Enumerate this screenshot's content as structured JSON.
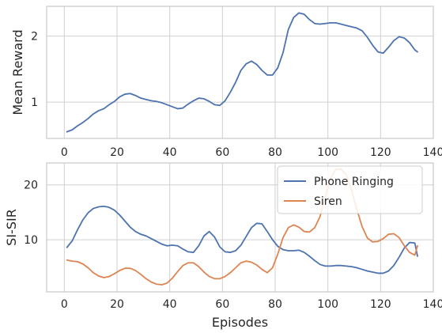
{
  "chart_data": [
    {
      "type": "line",
      "ylabel": "Mean Reward",
      "xlabel": "",
      "xlim": [
        -6.7,
        140
      ],
      "ylim": [
        0.45,
        2.45
      ],
      "xticks": [
        0,
        20,
        40,
        60,
        80,
        100,
        120,
        140
      ],
      "yticks": [
        1,
        2
      ],
      "grid": true,
      "legend": false,
      "series": [
        {
          "color": "#4c72b0",
          "x": [
            1,
            3,
            5,
            7,
            9,
            11,
            13,
            15,
            17,
            19,
            21,
            23,
            25,
            27,
            29,
            31,
            33,
            35,
            37,
            39,
            41,
            43,
            45,
            47,
            49,
            51,
            53,
            55,
            57,
            59,
            61,
            63,
            65,
            67,
            69,
            71,
            73,
            75,
            77,
            79,
            81,
            83,
            85,
            87,
            89,
            91,
            93,
            95,
            97,
            99,
            101,
            103,
            105,
            107,
            109,
            111,
            113,
            115,
            117,
            119,
            121,
            123,
            125,
            127,
            129,
            131,
            133,
            134
          ],
          "values": [
            0.55,
            0.58,
            0.64,
            0.69,
            0.75,
            0.82,
            0.87,
            0.9,
            0.96,
            1.01,
            1.08,
            1.12,
            1.13,
            1.1,
            1.06,
            1.04,
            1.02,
            1.01,
            0.99,
            0.96,
            0.93,
            0.9,
            0.91,
            0.97,
            1.02,
            1.06,
            1.05,
            1.01,
            0.96,
            0.95,
            1.02,
            1.15,
            1.3,
            1.48,
            1.58,
            1.62,
            1.57,
            1.48,
            1.41,
            1.41,
            1.52,
            1.75,
            2.1,
            2.28,
            2.35,
            2.33,
            2.25,
            2.19,
            2.18,
            2.19,
            2.2,
            2.2,
            2.18,
            2.16,
            2.14,
            2.12,
            2.08,
            1.98,
            1.86,
            1.76,
            1.74,
            1.83,
            1.93,
            1.99,
            1.97,
            1.9,
            1.79,
            1.76
          ]
        }
      ]
    },
    {
      "type": "line",
      "ylabel": "SI-SIR",
      "xlabel": "Episodes",
      "xlim": [
        -6.7,
        140
      ],
      "ylim": [
        0.5,
        24
      ],
      "xticks": [
        0,
        20,
        40,
        60,
        80,
        100,
        120,
        140
      ],
      "yticks": [
        10,
        20
      ],
      "grid": true,
      "legend": true,
      "legend_position": "top-right",
      "series": [
        {
          "name": "Phone Ringing",
          "color": "#4c72b0",
          "x": [
            1,
            3,
            5,
            7,
            9,
            11,
            13,
            15,
            17,
            19,
            21,
            23,
            25,
            27,
            29,
            31,
            33,
            35,
            37,
            39,
            41,
            43,
            45,
            47,
            49,
            51,
            53,
            55,
            57,
            59,
            61,
            63,
            65,
            67,
            69,
            71,
            73,
            75,
            77,
            79,
            81,
            83,
            85,
            87,
            89,
            91,
            93,
            95,
            97,
            99,
            101,
            103,
            105,
            107,
            109,
            111,
            113,
            115,
            117,
            119,
            121,
            123,
            125,
            127,
            129,
            131,
            133,
            134
          ],
          "values": [
            8.6,
            9.8,
            11.8,
            13.6,
            14.9,
            15.7,
            16.0,
            16.1,
            15.9,
            15.4,
            14.5,
            13.4,
            12.3,
            11.5,
            11.0,
            10.7,
            10.2,
            9.7,
            9.2,
            8.9,
            9.0,
            8.9,
            8.3,
            7.8,
            7.7,
            8.9,
            10.7,
            11.5,
            10.5,
            8.7,
            7.8,
            7.7,
            8.0,
            9.0,
            10.6,
            12.2,
            13.0,
            12.9,
            11.5,
            10.0,
            8.8,
            8.2,
            8.0,
            8.0,
            8.1,
            7.7,
            7.0,
            6.2,
            5.5,
            5.2,
            5.2,
            5.3,
            5.3,
            5.2,
            5.1,
            4.9,
            4.6,
            4.3,
            4.1,
            3.9,
            3.9,
            4.3,
            5.3,
            6.8,
            8.5,
            9.5,
            9.4,
            7.0
          ]
        },
        {
          "name": "Siren",
          "color": "#dd8452",
          "x": [
            1,
            3,
            5,
            7,
            9,
            11,
            13,
            15,
            17,
            19,
            21,
            23,
            25,
            27,
            29,
            31,
            33,
            35,
            37,
            39,
            41,
            43,
            45,
            47,
            49,
            51,
            53,
            55,
            57,
            59,
            61,
            63,
            65,
            67,
            69,
            71,
            73,
            75,
            77,
            79,
            81,
            83,
            85,
            87,
            89,
            91,
            93,
            95,
            97,
            99,
            101,
            103,
            105,
            107,
            109,
            111,
            113,
            115,
            117,
            119,
            121,
            123,
            125,
            127,
            129,
            131,
            133,
            134
          ],
          "values": [
            6.3,
            6.1,
            6.0,
            5.6,
            4.9,
            4.0,
            3.4,
            3.1,
            3.3,
            3.8,
            4.4,
            4.8,
            4.8,
            4.4,
            3.7,
            2.9,
            2.3,
            1.9,
            1.8,
            2.1,
            3.0,
            4.2,
            5.3,
            5.8,
            5.8,
            5.1,
            4.1,
            3.3,
            2.9,
            2.9,
            3.3,
            4.0,
            4.9,
            5.8,
            6.1,
            5.9,
            5.4,
            4.6,
            4.0,
            4.9,
            7.4,
            10.4,
            12.2,
            12.7,
            12.3,
            11.5,
            11.4,
            12.2,
            14.2,
            17.8,
            21.2,
            22.8,
            22.9,
            21.8,
            19.0,
            15.5,
            12.4,
            10.3,
            9.6,
            9.7,
            10.2,
            11.0,
            11.1,
            10.4,
            8.9,
            7.7,
            7.2,
            8.9
          ]
        }
      ]
    }
  ]
}
